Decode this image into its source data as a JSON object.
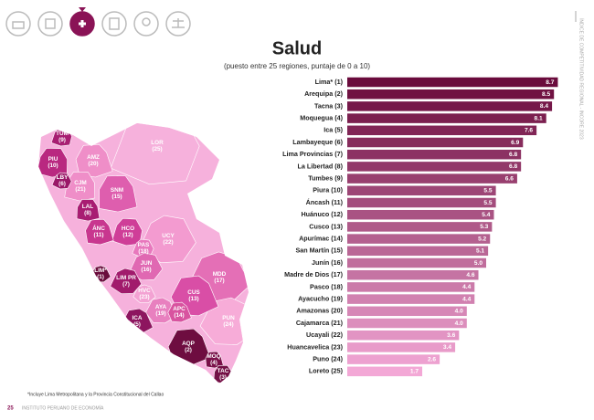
{
  "header": {
    "title": "Salud",
    "subtitle": "(puesto entre 25 regiones, puntaje de 0 a 10)",
    "side_text": "ÍNDICE DE COMPETITIVIDAD REGIONAL - INCORE 2023"
  },
  "footer": {
    "note": "*Incluye Lima Metropolitana y la Provincia Constitucional del Callao",
    "page": "25",
    "org": "INSTITUTO PERUANO DE ECONOMÍA"
  },
  "map": {
    "regions": [
      {
        "code": "LOR",
        "rank": "(25)",
        "color": "#f6b1dc"
      },
      {
        "code": "UCY",
        "rank": "(22)",
        "color": "#f39bd0"
      },
      {
        "code": "MDD",
        "rank": "(17)",
        "color": "#e46fb6"
      },
      {
        "code": "PUN",
        "rank": "(24)",
        "color": "#f7acd8"
      },
      {
        "code": "CUS",
        "rank": "(13)",
        "color": "#d94ea6"
      },
      {
        "code": "AMZ",
        "rank": "(20)",
        "color": "#ef8ec8"
      },
      {
        "code": "SNM",
        "rank": "(15)",
        "color": "#de5eae"
      },
      {
        "code": "CJM",
        "rank": "(21)",
        "color": "#ef8ec8"
      },
      {
        "code": "HCO",
        "rank": "(12)",
        "color": "#cf3e98"
      },
      {
        "code": "PAS",
        "rank": "(18)",
        "color": "#e878bd"
      },
      {
        "code": "JUN",
        "rank": "(16)",
        "color": "#e068b2"
      },
      {
        "code": "HVC",
        "rank": "(23)",
        "color": "#f3a2d3"
      },
      {
        "code": "AYA",
        "rank": "(19)",
        "color": "#e880bf"
      },
      {
        "code": "APC",
        "rank": "(14)",
        "color": "#d8539f"
      },
      {
        "code": "ÁNC",
        "rank": "(11)",
        "color": "#c8378f"
      },
      {
        "code": "LAL",
        "rank": "(8)",
        "color": "#a81d72"
      },
      {
        "code": "PIU",
        "rank": "(10)",
        "color": "#b92880"
      },
      {
        "code": "TUM",
        "rank": "(9)",
        "color": "#a81e72"
      },
      {
        "code": "LBY",
        "rank": "(6)",
        "color": "#9a1868"
      },
      {
        "code": "LIM PR",
        "rank": "(7)",
        "color": "#a11b6c"
      },
      {
        "code": "LIM*",
        "rank": "(1)",
        "color": "#6a0c3c"
      },
      {
        "code": "ICA",
        "rank": "(5)",
        "color": "#8d155f"
      },
      {
        "code": "AQP",
        "rank": "(2)",
        "color": "#6e0d40"
      },
      {
        "code": "MOQ",
        "rank": "(4)",
        "color": "#7a1049"
      },
      {
        "code": "TAC",
        "rank": "(3)",
        "color": "#741046"
      }
    ]
  },
  "chart_data": {
    "type": "bar",
    "orientation": "horizontal",
    "categories": [
      "Lima* (1)",
      "Arequipa (2)",
      "Tacna (3)",
      "Moquegua (4)",
      "Ica (5)",
      "Lambayeque (6)",
      "Lima Provincias (7)",
      "La Libertad (8)",
      "Tumbes (9)",
      "Piura (10)",
      "Áncash (11)",
      "Huánuco (12)",
      "Cusco (13)",
      "Apurímac (14)",
      "San Martín (15)",
      "Junín (16)",
      "Madre de Dios (17)",
      "Pasco (18)",
      "Ayacucho (19)",
      "Amazonas (20)",
      "Cajamarca (21)",
      "Ucayali (22)",
      "Huancavelica (23)",
      "Puno (24)",
      "Loreto (25)"
    ],
    "values": [
      8.7,
      8.5,
      8.4,
      8.1,
      7.6,
      6.9,
      6.8,
      6.8,
      6.6,
      5.5,
      5.5,
      5.4,
      5.3,
      5.2,
      5.1,
      5.0,
      4.6,
      4.4,
      4.4,
      4.0,
      4.0,
      3.6,
      3.4,
      2.6,
      1.7
    ],
    "value_labels": [
      "8.7",
      "8.5",
      "8.4",
      "8.1",
      "7.6",
      "6.9",
      "6.8",
      "6.8",
      "6.6",
      "5.5",
      "5.5",
      "5.4",
      "5.3",
      "5.2",
      "5.1",
      "5.0",
      "4.6",
      "4.4",
      "4.4",
      "4.0",
      "4.0",
      "3.6",
      "3.4",
      "2.6",
      "1.7"
    ],
    "color_range": [
      "#6a0b3c",
      "#f3a8d6"
    ]
  }
}
